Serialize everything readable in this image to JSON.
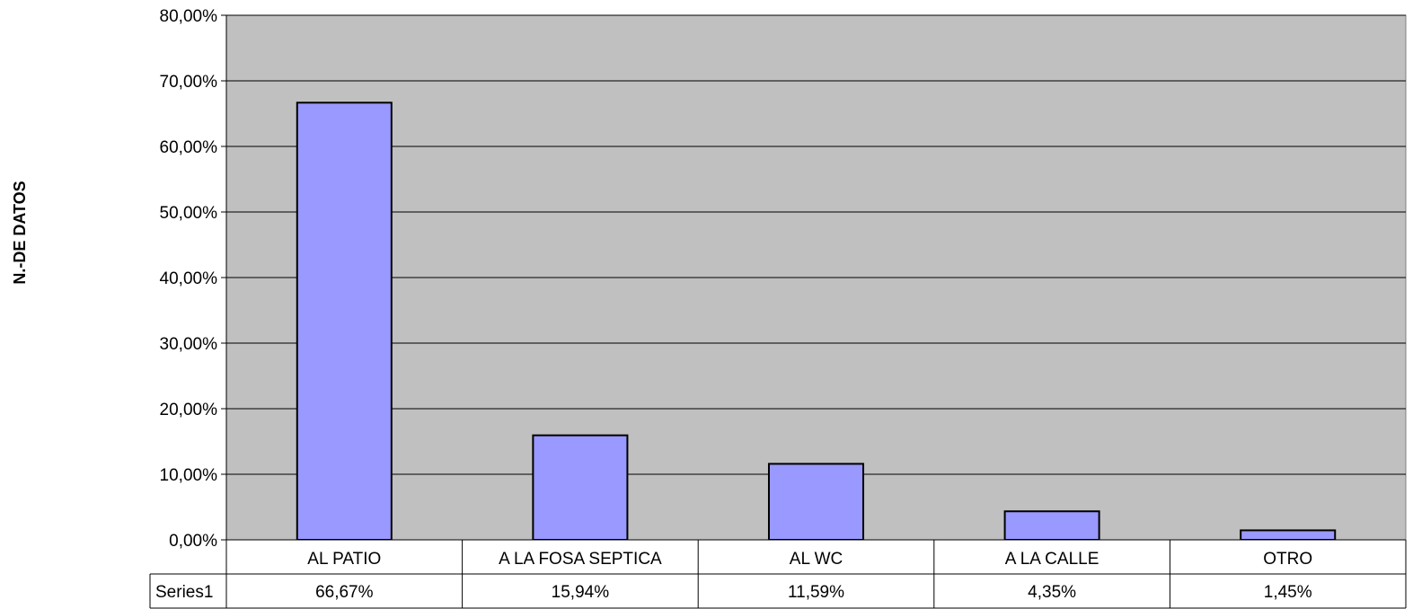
{
  "chart_data": {
    "type": "bar",
    "categories": [
      "AL PATIO",
      "A LA FOSA SEPTICA",
      "AL WC",
      "A LA CALLE",
      "OTRO"
    ],
    "series": [
      {
        "name": "Series1",
        "values": [
          66.67,
          15.94,
          11.59,
          4.35,
          1.45
        ],
        "value_labels": [
          "66,67%",
          "15,94%",
          "11,59%",
          "4,35%",
          "1,45%"
        ]
      }
    ],
    "ylabel": "N.-DE DATOS",
    "xlabel": "",
    "ylim": [
      0,
      80
    ],
    "yticks": [
      0,
      10,
      20,
      30,
      40,
      50,
      60,
      70,
      80
    ],
    "ytick_labels": [
      "0,00%",
      "10,00%",
      "20,00%",
      "30,00%",
      "40,00%",
      "50,00%",
      "60,00%",
      "70,00%",
      "80,00%"
    ],
    "grid": true,
    "data_table": true,
    "colors": {
      "bar_fill": "#9999ff",
      "bar_stroke": "#000000",
      "plot_background": "#c0c0c0",
      "grid": "#000000"
    }
  }
}
